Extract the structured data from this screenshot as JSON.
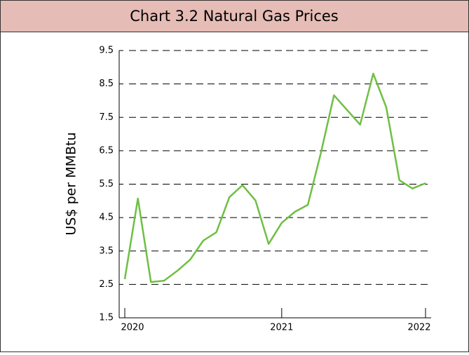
{
  "chart_data": {
    "type": "line",
    "title": "Chart 3.2 Natural Gas Prices",
    "y_label": "US$ per MMBtu",
    "categories": [
      "2020",
      null,
      null,
      null,
      null,
      null,
      null,
      null,
      null,
      null,
      null,
      null,
      "2021",
      null,
      null,
      null,
      null,
      null,
      null,
      null,
      null,
      null,
      null,
      "2022"
    ],
    "series": [
      {
        "name": "Natural gas",
        "color": "#6fbf44",
        "values": [
          2.66,
          5.07,
          2.57,
          2.61,
          2.9,
          3.24,
          3.81,
          4.06,
          5.11,
          5.47,
          5.01,
          3.71,
          4.34,
          4.67,
          4.88,
          6.44,
          8.16,
          7.72,
          7.28,
          8.81,
          7.8,
          5.62,
          5.37,
          5.53
        ]
      }
    ],
    "ylim": [
      1.5,
      9.5
    ],
    "yticks": [
      1.5,
      2.5,
      3.5,
      4.5,
      5.5,
      6.5,
      7.5,
      8.5,
      9.5
    ],
    "grid": true
  }
}
